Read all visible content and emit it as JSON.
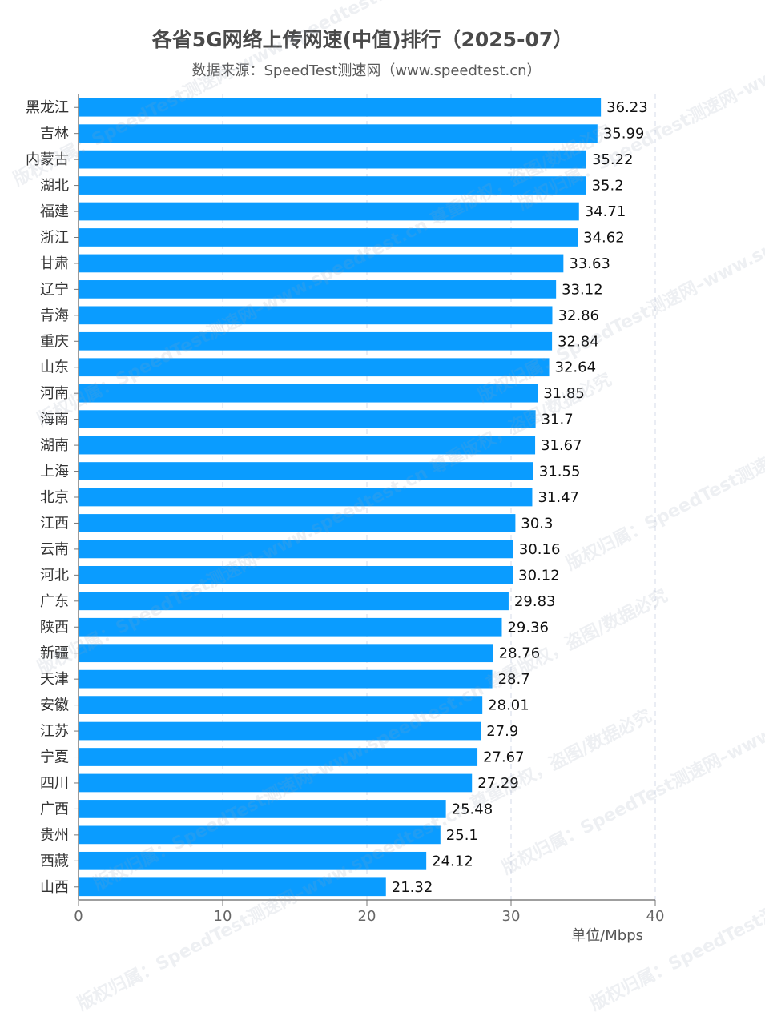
{
  "chart_data": {
    "type": "bar",
    "orientation": "horizontal",
    "title": "各省5G网络上传网速(中值)排行（2025-07）",
    "subtitle": "数据来源：SpeedTest测速网（www.speedtest.cn）",
    "unit": "单位/Mbps",
    "categories": [
      "黑龙江",
      "吉林",
      "内蒙古",
      "湖北",
      "福建",
      "浙江",
      "甘肃",
      "辽宁",
      "青海",
      "重庆",
      "山东",
      "河南",
      "海南",
      "湖南",
      "上海",
      "北京",
      "江西",
      "云南",
      "河北",
      "广东",
      "陕西",
      "新疆",
      "天津",
      "安徽",
      "江苏",
      "宁夏",
      "四川",
      "广西",
      "贵州",
      "西藏",
      "山西"
    ],
    "values": [
      36.23,
      35.99,
      35.22,
      35.2,
      34.71,
      34.62,
      33.63,
      33.12,
      32.86,
      32.84,
      32.64,
      31.85,
      31.7,
      31.67,
      31.55,
      31.47,
      30.3,
      30.16,
      30.12,
      29.83,
      29.36,
      28.76,
      28.7,
      28.01,
      27.9,
      27.67,
      27.29,
      25.48,
      25.1,
      24.12,
      21.32
    ],
    "xlim": [
      0,
      40
    ],
    "xticks": [
      0,
      10,
      20,
      30,
      40
    ],
    "grid": true,
    "bar_color": "#0a9cff"
  },
  "watermark": "版权归属：SpeedTest测速网–www.speedtest.cn  尊重版权，盗图/数据必究"
}
